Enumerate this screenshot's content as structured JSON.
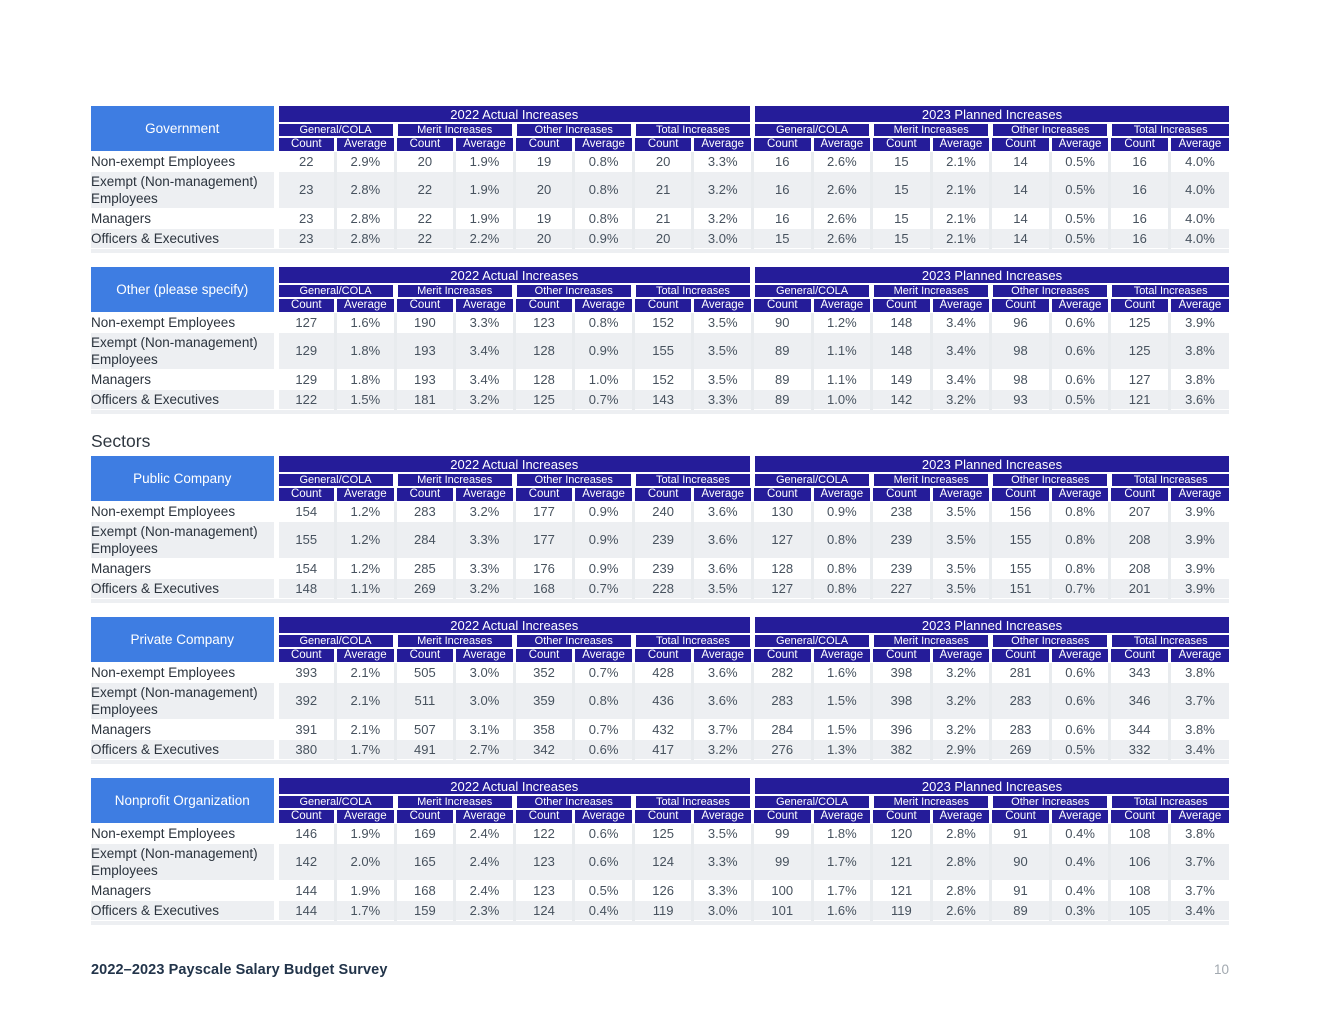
{
  "sectors_heading": "Sectors",
  "footer": {
    "title": "2022–2023 Payscale Salary Budget Survey",
    "page_number": "10"
  },
  "colors": {
    "header_dark": "#251C99",
    "label_blue": "#3E7DE2",
    "row_alt": "#EDEFF2",
    "grid": "#E8EBEE",
    "data_text": "#47525E"
  },
  "table_headers": {
    "year_2022": "2022 Actual Increases",
    "year_2023": "2023 Planned Increases",
    "groups": [
      "General/COLA",
      "Merit Increases",
      "Other Increases",
      "Total Increases"
    ],
    "subcolumns": [
      "Count",
      "Average"
    ]
  },
  "row_labels": [
    "Non-exempt Employees",
    "Exempt (Non-management) Employees",
    "Managers",
    "Officers & Executives"
  ],
  "tables": [
    {
      "id": "government",
      "title": "Government",
      "rows": [
        [
          "22",
          "2.9%",
          "20",
          "1.9%",
          "19",
          "0.8%",
          "20",
          "3.3%",
          "16",
          "2.6%",
          "15",
          "2.1%",
          "14",
          "0.5%",
          "16",
          "4.0%"
        ],
        [
          "23",
          "2.8%",
          "22",
          "1.9%",
          "20",
          "0.8%",
          "21",
          "3.2%",
          "16",
          "2.6%",
          "15",
          "2.1%",
          "14",
          "0.5%",
          "16",
          "4.0%"
        ],
        [
          "23",
          "2.8%",
          "22",
          "1.9%",
          "19",
          "0.8%",
          "21",
          "3.2%",
          "16",
          "2.6%",
          "15",
          "2.1%",
          "14",
          "0.5%",
          "16",
          "4.0%"
        ],
        [
          "23",
          "2.8%",
          "22",
          "2.2%",
          "20",
          "0.9%",
          "20",
          "3.0%",
          "15",
          "2.6%",
          "15",
          "2.1%",
          "14",
          "0.5%",
          "16",
          "4.0%"
        ]
      ]
    },
    {
      "id": "other-please-specify",
      "title": "Other (please specify)",
      "rows": [
        [
          "127",
          "1.6%",
          "190",
          "3.3%",
          "123",
          "0.8%",
          "152",
          "3.5%",
          "90",
          "1.2%",
          "148",
          "3.4%",
          "96",
          "0.6%",
          "125",
          "3.9%"
        ],
        [
          "129",
          "1.8%",
          "193",
          "3.4%",
          "128",
          "0.9%",
          "155",
          "3.5%",
          "89",
          "1.1%",
          "148",
          "3.4%",
          "98",
          "0.6%",
          "125",
          "3.8%"
        ],
        [
          "129",
          "1.8%",
          "193",
          "3.4%",
          "128",
          "1.0%",
          "152",
          "3.5%",
          "89",
          "1.1%",
          "149",
          "3.4%",
          "98",
          "0.6%",
          "127",
          "3.8%"
        ],
        [
          "122",
          "1.5%",
          "181",
          "3.2%",
          "125",
          "0.7%",
          "143",
          "3.3%",
          "89",
          "1.0%",
          "142",
          "3.2%",
          "93",
          "0.5%",
          "121",
          "3.6%"
        ]
      ]
    },
    {
      "id": "public-company",
      "title": "Public Company",
      "rows": [
        [
          "154",
          "1.2%",
          "283",
          "3.2%",
          "177",
          "0.9%",
          "240",
          "3.6%",
          "130",
          "0.9%",
          "238",
          "3.5%",
          "156",
          "0.8%",
          "207",
          "3.9%"
        ],
        [
          "155",
          "1.2%",
          "284",
          "3.3%",
          "177",
          "0.9%",
          "239",
          "3.6%",
          "127",
          "0.8%",
          "239",
          "3.5%",
          "155",
          "0.8%",
          "208",
          "3.9%"
        ],
        [
          "154",
          "1.2%",
          "285",
          "3.3%",
          "176",
          "0.9%",
          "239",
          "3.6%",
          "128",
          "0.8%",
          "239",
          "3.5%",
          "155",
          "0.8%",
          "208",
          "3.9%"
        ],
        [
          "148",
          "1.1%",
          "269",
          "3.2%",
          "168",
          "0.7%",
          "228",
          "3.5%",
          "127",
          "0.8%",
          "227",
          "3.5%",
          "151",
          "0.7%",
          "201",
          "3.9%"
        ]
      ]
    },
    {
      "id": "private-company",
      "title": "Private Company",
      "rows": [
        [
          "393",
          "2.1%",
          "505",
          "3.0%",
          "352",
          "0.7%",
          "428",
          "3.6%",
          "282",
          "1.6%",
          "398",
          "3.2%",
          "281",
          "0.6%",
          "343",
          "3.8%"
        ],
        [
          "392",
          "2.1%",
          "511",
          "3.0%",
          "359",
          "0.8%",
          "436",
          "3.6%",
          "283",
          "1.5%",
          "398",
          "3.2%",
          "283",
          "0.6%",
          "346",
          "3.7%"
        ],
        [
          "391",
          "2.1%",
          "507",
          "3.1%",
          "358",
          "0.7%",
          "432",
          "3.7%",
          "284",
          "1.5%",
          "396",
          "3.2%",
          "283",
          "0.6%",
          "344",
          "3.8%"
        ],
        [
          "380",
          "1.7%",
          "491",
          "2.7%",
          "342",
          "0.6%",
          "417",
          "3.2%",
          "276",
          "1.3%",
          "382",
          "2.9%",
          "269",
          "0.5%",
          "332",
          "3.4%"
        ]
      ]
    },
    {
      "id": "nonprofit-organization",
      "title": "Nonprofit Organization",
      "rows": [
        [
          "146",
          "1.9%",
          "169",
          "2.4%",
          "122",
          "0.6%",
          "125",
          "3.5%",
          "99",
          "1.8%",
          "120",
          "2.8%",
          "91",
          "0.4%",
          "108",
          "3.8%"
        ],
        [
          "142",
          "2.0%",
          "165",
          "2.4%",
          "123",
          "0.6%",
          "124",
          "3.3%",
          "99",
          "1.7%",
          "121",
          "2.8%",
          "90",
          "0.4%",
          "106",
          "3.7%"
        ],
        [
          "144",
          "1.9%",
          "168",
          "2.4%",
          "123",
          "0.5%",
          "126",
          "3.3%",
          "100",
          "1.7%",
          "121",
          "2.8%",
          "91",
          "0.4%",
          "108",
          "3.7%"
        ],
        [
          "144",
          "1.7%",
          "159",
          "2.3%",
          "124",
          "0.4%",
          "119",
          "3.0%",
          "101",
          "1.6%",
          "119",
          "2.6%",
          "89",
          "0.3%",
          "105",
          "3.4%"
        ]
      ]
    }
  ]
}
